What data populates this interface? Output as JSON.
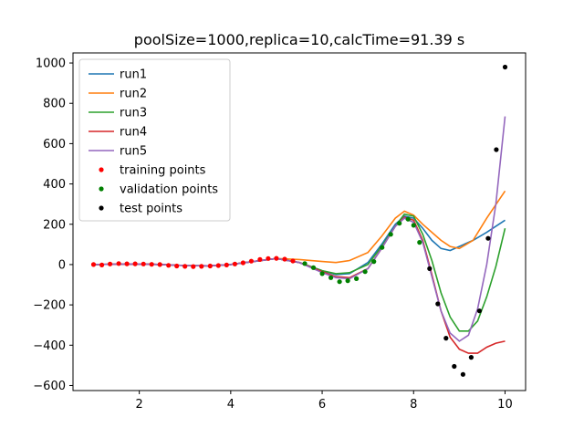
{
  "chart_data": {
    "type": "line",
    "title": "poolSize=1000,replica=10,calcTime=91.39 s",
    "xlabel": "",
    "ylabel": "",
    "xlim": [
      0.55,
      10.45
    ],
    "ylim": [
      -625,
      1050
    ],
    "xticks": [
      2,
      4,
      6,
      8,
      10
    ],
    "yticks": [
      -600,
      -400,
      -200,
      0,
      200,
      400,
      600,
      800,
      1000
    ],
    "grid": false,
    "legend_position": "top-left",
    "series": [
      {
        "name": "run1",
        "color": "#1f77b4",
        "kind": "line",
        "x": [
          1.0,
          1.5,
          2.0,
          2.5,
          3.0,
          3.5,
          4.0,
          4.5,
          5.0,
          5.5,
          6.0,
          6.3,
          6.6,
          7.0,
          7.3,
          7.6,
          7.8,
          8.0,
          8.2,
          8.4,
          8.6,
          8.8,
          9.0,
          9.3,
          9.6,
          10.0
        ],
        "y": [
          0,
          2,
          3,
          0,
          -5,
          -6,
          0,
          15,
          30,
          10,
          -30,
          -50,
          -45,
          10,
          100,
          200,
          240,
          230,
          180,
          120,
          80,
          70,
          90,
          120,
          160,
          220
        ]
      },
      {
        "name": "run2",
        "color": "#ff7f0e",
        "kind": "line",
        "x": [
          1.0,
          1.5,
          2.0,
          2.5,
          3.0,
          3.5,
          4.0,
          4.5,
          5.0,
          5.5,
          6.0,
          6.3,
          6.6,
          7.0,
          7.3,
          7.6,
          7.8,
          8.0,
          8.2,
          8.4,
          8.6,
          8.8,
          9.0,
          9.3,
          9.6,
          10.0
        ],
        "y": [
          0,
          2,
          3,
          0,
          -5,
          -6,
          0,
          15,
          30,
          25,
          15,
          10,
          20,
          60,
          140,
          230,
          265,
          245,
          200,
          160,
          120,
          90,
          80,
          120,
          230,
          365
        ]
      },
      {
        "name": "run3",
        "color": "#2ca02c",
        "kind": "line",
        "x": [
          1.0,
          1.5,
          2.0,
          2.5,
          3.0,
          3.5,
          4.0,
          4.5,
          5.0,
          5.5,
          6.0,
          6.3,
          6.6,
          7.0,
          7.3,
          7.6,
          7.8,
          8.0,
          8.2,
          8.4,
          8.6,
          8.8,
          9.0,
          9.2,
          9.4,
          9.6,
          9.8,
          10.0
        ],
        "y": [
          0,
          2,
          3,
          0,
          -5,
          -6,
          0,
          15,
          30,
          10,
          -30,
          -45,
          -40,
          0,
          90,
          190,
          250,
          240,
          150,
          20,
          -140,
          -260,
          -330,
          -330,
          -280,
          -160,
          -10,
          180
        ]
      },
      {
        "name": "run4",
        "color": "#d62728",
        "kind": "line",
        "x": [
          1.0,
          1.5,
          2.0,
          2.5,
          3.0,
          3.5,
          4.0,
          4.5,
          5.0,
          5.5,
          6.0,
          6.3,
          6.6,
          7.0,
          7.3,
          7.6,
          7.8,
          8.0,
          8.2,
          8.4,
          8.6,
          8.8,
          9.0,
          9.2,
          9.4,
          9.6,
          9.8,
          10.0
        ],
        "y": [
          0,
          2,
          3,
          0,
          -5,
          -6,
          0,
          15,
          30,
          10,
          -35,
          -60,
          -65,
          -20,
          80,
          190,
          235,
          220,
          120,
          -50,
          -230,
          -360,
          -420,
          -440,
          -440,
          -410,
          -390,
          -380
        ]
      },
      {
        "name": "run5",
        "color": "#9467bd",
        "kind": "line",
        "x": [
          1.0,
          1.5,
          2.0,
          2.5,
          3.0,
          3.5,
          4.0,
          4.5,
          5.0,
          5.5,
          6.0,
          6.3,
          6.6,
          7.0,
          7.3,
          7.6,
          7.8,
          8.0,
          8.2,
          8.4,
          8.6,
          8.8,
          9.0,
          9.2,
          9.4,
          9.6,
          9.8,
          10.0
        ],
        "y": [
          0,
          2,
          3,
          0,
          -5,
          -6,
          0,
          15,
          30,
          10,
          -40,
          -65,
          -70,
          -20,
          80,
          190,
          230,
          210,
          110,
          -60,
          -230,
          -340,
          -380,
          -350,
          -220,
          0,
          300,
          735
        ]
      },
      {
        "name": "training points",
        "color": "#ff0000",
        "kind": "points",
        "x": [
          1.0,
          1.18,
          1.36,
          1.55,
          1.73,
          1.91,
          2.09,
          2.27,
          2.45,
          2.64,
          2.82,
          3.0,
          3.18,
          3.36,
          3.55,
          3.73,
          3.91,
          4.09,
          4.27,
          4.45,
          4.64,
          4.82,
          5.0,
          5.18,
          5.36
        ],
        "y": [
          0,
          -2,
          3,
          5,
          4,
          4,
          3,
          1,
          0,
          -4,
          -7,
          -9,
          -10,
          -9,
          -7,
          -5,
          -2,
          3,
          9,
          17,
          25,
          30,
          31,
          27,
          18
        ]
      },
      {
        "name": "validation points",
        "color": "#008000",
        "kind": "points",
        "x": [
          5.62,
          5.81,
          6.0,
          6.19,
          6.38,
          6.56,
          6.75,
          6.94,
          7.13,
          7.31,
          7.5,
          7.69,
          7.88,
          8.0,
          8.13
        ],
        "y": [
          5,
          -15,
          -45,
          -65,
          -85,
          -80,
          -70,
          -35,
          15,
          85,
          150,
          205,
          225,
          195,
          110
        ]
      },
      {
        "name": "test points",
        "color": "#000000",
        "kind": "points",
        "x": [
          8.35,
          8.53,
          8.71,
          8.89,
          9.08,
          9.26,
          9.44,
          9.63,
          9.81,
          10.0
        ],
        "y": [
          -20,
          -195,
          -365,
          -505,
          -545,
          -460,
          -230,
          130,
          570,
          980
        ]
      }
    ]
  }
}
